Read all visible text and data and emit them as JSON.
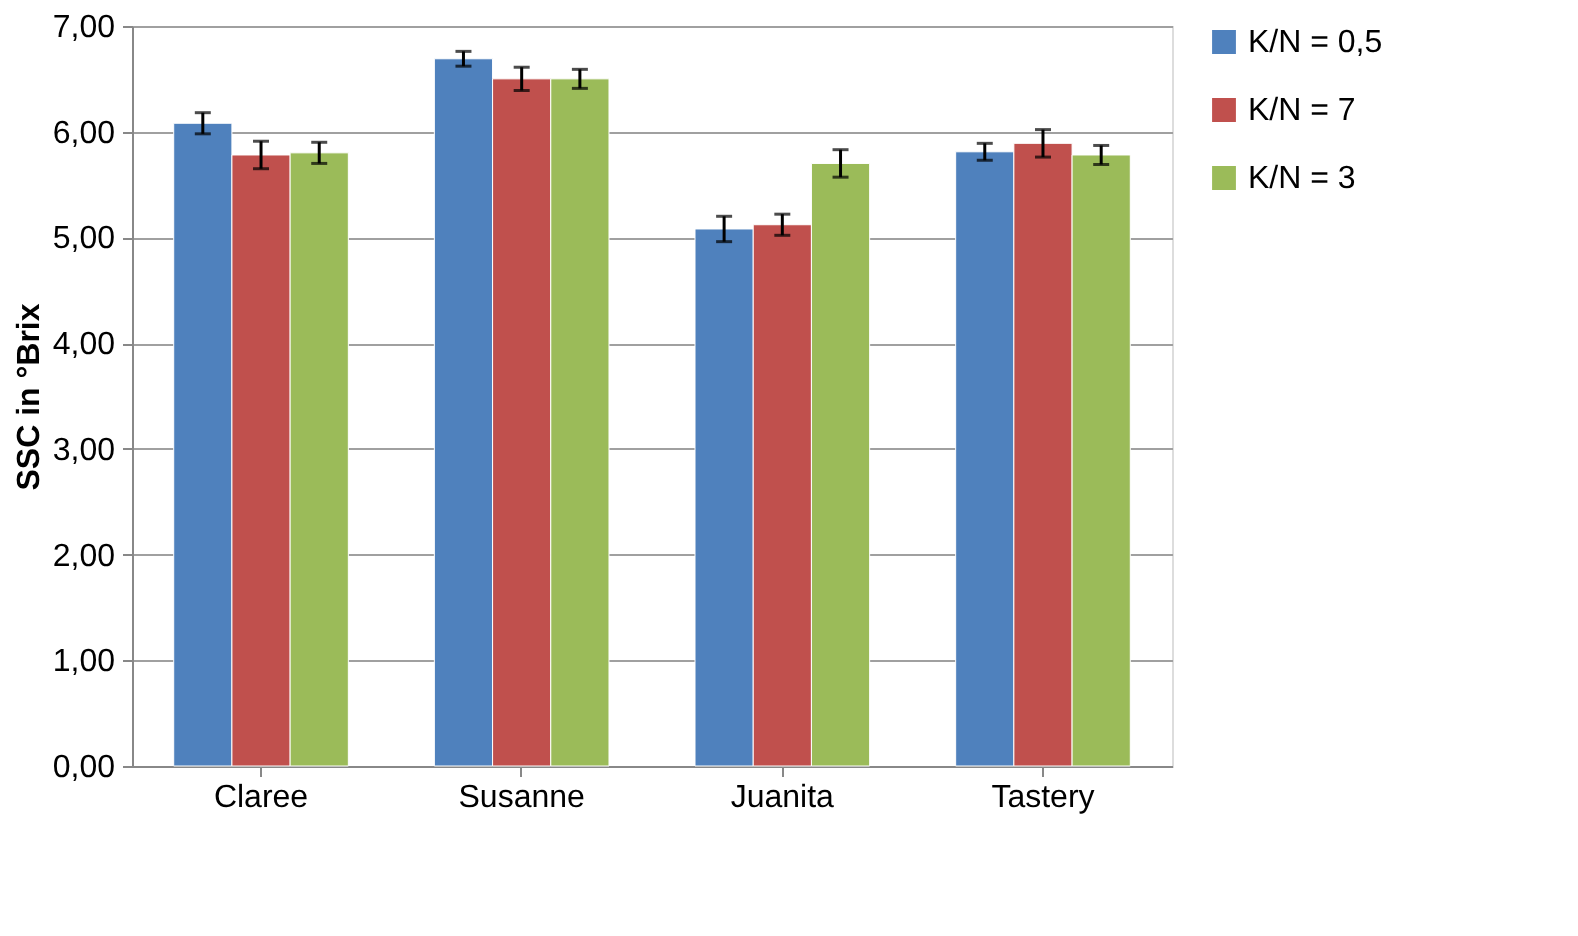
{
  "chart_data": {
    "type": "bar",
    "ylabel": "SSC in °Brix",
    "categories": [
      "Claree",
      "Susanne",
      "Juanita",
      "Tastery"
    ],
    "series": [
      {
        "name": "K/N = 0,5",
        "color": "#4f81bd",
        "values": [
          6.08,
          6.69,
          5.08,
          5.81
        ],
        "errors": [
          0.1,
          0.07,
          0.12,
          0.08
        ]
      },
      {
        "name": "K/N = 7",
        "color": "#c0504d",
        "values": [
          5.78,
          6.5,
          5.12,
          5.89
        ],
        "errors": [
          0.13,
          0.11,
          0.1,
          0.13
        ]
      },
      {
        "name": "K/N = 3",
        "color": "#9bbb59",
        "values": [
          5.8,
          6.5,
          5.7,
          5.78
        ],
        "errors": [
          0.1,
          0.09,
          0.13,
          0.09
        ]
      }
    ],
    "ylim": [
      0,
      7
    ],
    "yticks": [
      {
        "value": 0,
        "label": "0,00"
      },
      {
        "value": 1,
        "label": "1,00"
      },
      {
        "value": 2,
        "label": "2,00"
      },
      {
        "value": 3,
        "label": "3,00"
      },
      {
        "value": 4,
        "label": "4,00"
      },
      {
        "value": 5,
        "label": "5,00"
      },
      {
        "value": 6,
        "label": "6,00"
      },
      {
        "value": 7,
        "label": "7,00"
      }
    ],
    "grid": "y",
    "legend": "right"
  }
}
